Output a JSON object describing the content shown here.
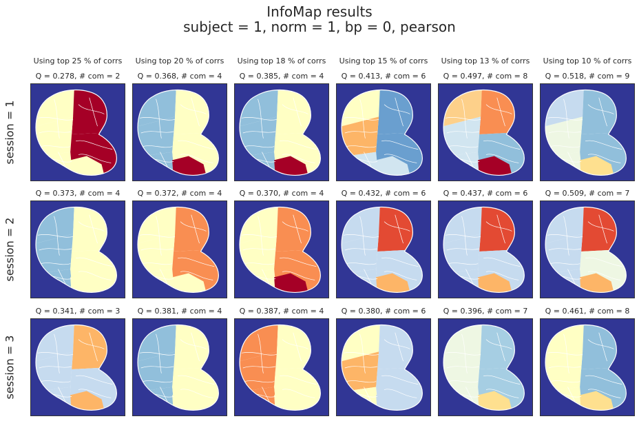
{
  "title": {
    "line1": "InfoMap results",
    "line2": "subject = 1,   norm = 1,   bp = 0,   pearson"
  },
  "colormap": [
    "#313695",
    "#4575b4",
    "#74add1",
    "#abd9e9",
    "#e0f3f8",
    "#ffffbf",
    "#fee090",
    "#fdae61",
    "#f46d43",
    "#d73027",
    "#a50026"
  ],
  "chart_data": {
    "type": "heatmap",
    "columns": [
      "Using top 25 % of corrs",
      "Using top 20 % of corrs",
      "Using top 18 % of corrs",
      "Using top 15 % of corrs",
      "Using top 13 % of corrs",
      "Using top 10 % of corrs"
    ],
    "rows": [
      "session = 1",
      "session = 2",
      "session = 3"
    ],
    "panels": [
      [
        {
          "title": "Q = 0.278,  # com = 2",
          "Q": 0.278,
          "n_com": 2,
          "colors": [
            "#ffffc4",
            "#a50026",
            "#ffffc4",
            "#ffffc4",
            "#a50026",
            "#ffffc4"
          ]
        },
        {
          "title": "Q = 0.368,  # com = 4",
          "Q": 0.368,
          "n_com": 4,
          "colors": [
            "#91bfdb",
            "#ffffc4",
            "#91bfdb",
            "#91bfdb",
            "#ffffc4",
            "#a50026"
          ]
        },
        {
          "title": "Q = 0.385,  # com = 4",
          "Q": 0.385,
          "n_com": 4,
          "colors": [
            "#91bfdb",
            "#ffffc4",
            "#91bfdb",
            "#91bfdb",
            "#ffffc4",
            "#a50026"
          ]
        },
        {
          "title": "Q = 0.413,  # com = 6",
          "Q": 0.413,
          "n_com": 6,
          "colors": [
            "#ffffc4",
            "#6a9fcf",
            "#fdb567",
            "#d1e5f0",
            "#6a9fcf",
            "#d1e5f0"
          ]
        },
        {
          "title": "Q = 0.497,  # com = 8",
          "Q": 0.497,
          "n_com": 8,
          "colors": [
            "#fdd08a",
            "#f98e52",
            "#d1e5f0",
            "#d1e5f0",
            "#91bfdb",
            "#a50026"
          ]
        },
        {
          "title": "Q = 0.518,  # com = 9",
          "Q": 0.518,
          "n_com": 9,
          "colors": [
            "#c6dbef",
            "#91bfdb",
            "#eef7e3",
            "#eef7e3",
            "#91bfdb",
            "#fee08f"
          ]
        }
      ],
      [
        {
          "title": "Q = 0.373,  # com = 4",
          "Q": 0.373,
          "n_com": 4,
          "colors": [
            "#91bfdb",
            "#ffffc4",
            "#91bfdb",
            "#91bfdb",
            "#ffffc4",
            "#ffffc4"
          ]
        },
        {
          "title": "Q = 0.372,  # com = 4",
          "Q": 0.372,
          "n_com": 4,
          "colors": [
            "#ffffc4",
            "#f98e52",
            "#ffffc4",
            "#ffffc4",
            "#f98e52",
            "#ffffc4"
          ]
        },
        {
          "title": "Q = 0.370,  # com = 4",
          "Q": 0.37,
          "n_com": 4,
          "colors": [
            "#ffffc4",
            "#f98e52",
            "#ffffc4",
            "#ffffc4",
            "#f98e52",
            "#a50026"
          ]
        },
        {
          "title": "Q = 0.432,  # com = 6",
          "Q": 0.432,
          "n_com": 6,
          "colors": [
            "#c6dbef",
            "#e34a33",
            "#c6dbef",
            "#c6dbef",
            "#c6dbef",
            "#fdb567"
          ]
        },
        {
          "title": "Q = 0.437,  # com = 6",
          "Q": 0.437,
          "n_com": 6,
          "colors": [
            "#c6dbef",
            "#e34a33",
            "#c6dbef",
            "#c6dbef",
            "#c6dbef",
            "#fdb567"
          ]
        },
        {
          "title": "Q = 0.509,  # com = 7",
          "Q": 0.509,
          "n_com": 7,
          "colors": [
            "#c6dbef",
            "#e34a33",
            "#c6dbef",
            "#c6dbef",
            "#eef7e3",
            "#fdb567"
          ]
        }
      ],
      [
        {
          "title": "Q = 0.341,  # com = 3",
          "Q": 0.341,
          "n_com": 3,
          "colors": [
            "#c6dbef",
            "#fdb567",
            "#c6dbef",
            "#c6dbef",
            "#c6dbef",
            "#fdb567"
          ]
        },
        {
          "title": "Q = 0.381,  # com = 4",
          "Q": 0.381,
          "n_com": 4,
          "colors": [
            "#91bfdb",
            "#ffffc4",
            "#91bfdb",
            "#91bfdb",
            "#ffffc4",
            "#ffffc4"
          ]
        },
        {
          "title": "Q = 0.387,  # com = 4",
          "Q": 0.387,
          "n_com": 4,
          "colors": [
            "#f98e52",
            "#ffffc4",
            "#f98e52",
            "#f98e52",
            "#ffffc4",
            "#ffffc4"
          ]
        },
        {
          "title": "Q = 0.380,  # com = 6",
          "Q": 0.38,
          "n_com": 6,
          "colors": [
            "#ffffc4",
            "#c6dbef",
            "#fdb567",
            "#ffffc4",
            "#c6dbef",
            "#c6dbef"
          ]
        },
        {
          "title": "Q = 0.396,  # com = 7",
          "Q": 0.396,
          "n_com": 7,
          "colors": [
            "#eef7e3",
            "#a6cee3",
            "#eef7e3",
            "#eef7e3",
            "#a6cee3",
            "#fee08f"
          ]
        },
        {
          "title": "Q = 0.461,  # com = 8",
          "Q": 0.461,
          "n_com": 8,
          "colors": [
            "#ffffc4",
            "#91bfdb",
            "#ffffc4",
            "#ffffc4",
            "#91bfdb",
            "#fee08f"
          ]
        }
      ]
    ]
  }
}
